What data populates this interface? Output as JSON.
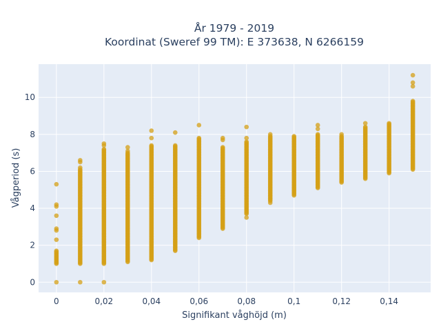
{
  "chart_data": {
    "type": "scatter",
    "title": "År 1979 - 2019",
    "subtitle": "Koordinat (Sweref 99 TM): E 373638, N 6266159",
    "xlabel": "Signifikant våghöjd (m)",
    "ylabel": "Vågperiod (s)",
    "xlim": [
      -0.0075,
      0.1575
    ],
    "ylim": [
      -0.55,
      11.8
    ],
    "x_ticks": [
      0,
      0.02,
      0.04,
      0.06,
      0.08,
      0.1,
      0.12,
      0.14
    ],
    "x_tick_labels": [
      "0",
      "0,02",
      "0,04",
      "0,06",
      "0,08",
      "0,1",
      "0,12",
      "0,14"
    ],
    "y_ticks": [
      0,
      2,
      4,
      6,
      8,
      10
    ],
    "y_tick_labels": [
      "0",
      "2",
      "4",
      "6",
      "8",
      "10"
    ],
    "grid": true,
    "colors": {
      "marker": "#d4a017",
      "plot_background": "#e5ecf6",
      "grid": "#ffffff",
      "text": "#2a3f5f"
    },
    "columns": [
      {
        "x": 0.0,
        "y_range": [
          1.0,
          1.7
        ],
        "outliers": [
          0,
          2.3,
          2.8,
          2.9,
          3.6,
          4.1,
          4.2,
          5.3
        ]
      },
      {
        "x": 0.01,
        "y_range": [
          1.0,
          6.1
        ],
        "outliers": [
          0,
          6.2,
          6.5,
          6.6
        ]
      },
      {
        "x": 0.02,
        "y_range": [
          1.0,
          7.2
        ],
        "outliers": [
          0,
          7.4,
          7.5
        ]
      },
      {
        "x": 0.03,
        "y_range": [
          1.1,
          7.0
        ],
        "outliers": [
          7.1,
          7.3
        ]
      },
      {
        "x": 0.04,
        "y_range": [
          1.2,
          7.4
        ],
        "outliers": [
          7.8,
          8.2
        ]
      },
      {
        "x": 0.05,
        "y_range": [
          1.7,
          7.4
        ],
        "outliers": [
          8.1
        ]
      },
      {
        "x": 0.06,
        "y_range": [
          2.4,
          7.8
        ],
        "outliers": [
          8.5
        ]
      },
      {
        "x": 0.07,
        "y_range": [
          2.9,
          7.3
        ],
        "outliers": [
          7.7,
          7.8
        ]
      },
      {
        "x": 0.08,
        "y_range": [
          3.7,
          7.6
        ],
        "outliers": [
          3.5,
          7.8,
          8.4
        ]
      },
      {
        "x": 0.09,
        "y_range": [
          4.4,
          7.9
        ],
        "outliers": [
          4.3,
          8.0
        ]
      },
      {
        "x": 0.1,
        "y_range": [
          4.7,
          7.9
        ],
        "outliers": []
      },
      {
        "x": 0.11,
        "y_range": [
          5.1,
          8.0
        ],
        "outliers": [
          8.3,
          8.5
        ]
      },
      {
        "x": 0.12,
        "y_range": [
          5.4,
          7.9
        ],
        "outliers": [
          8.0
        ]
      },
      {
        "x": 0.13,
        "y_range": [
          5.6,
          8.4
        ],
        "outliers": [
          8.6
        ]
      },
      {
        "x": 0.14,
        "y_range": [
          5.9,
          8.6
        ],
        "outliers": []
      },
      {
        "x": 0.15,
        "y_range": [
          6.1,
          9.8
        ],
        "outliers": [
          10.6,
          10.8,
          11.2
        ]
      }
    ]
  }
}
